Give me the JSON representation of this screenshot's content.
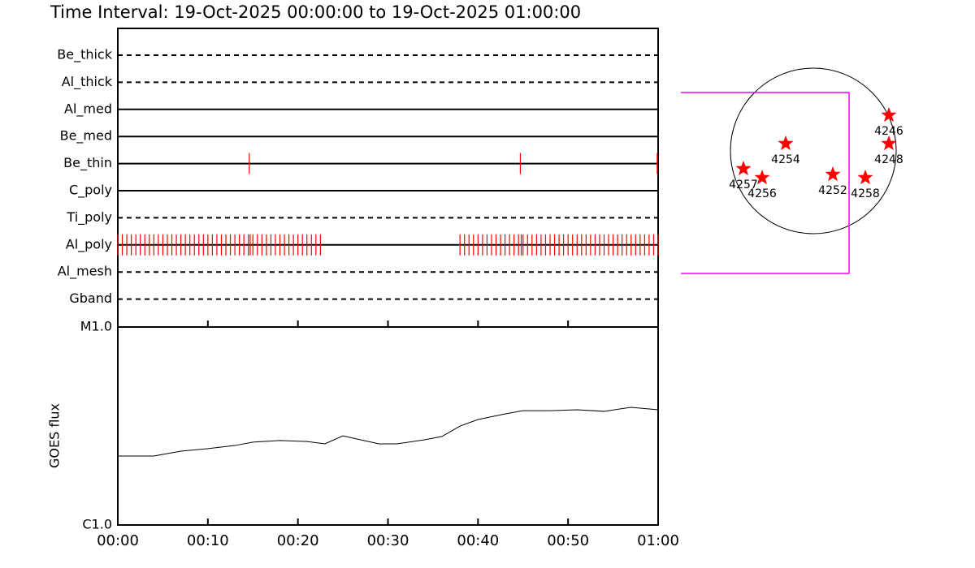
{
  "title": "Time Interval: 19-Oct-2025 00:00:00 to 19-Oct-2025 01:00:00",
  "chart_data": [
    {
      "type": "timeline",
      "xlim": [
        0,
        60
      ],
      "xticks": [
        {
          "value": 0,
          "label": "00:00"
        },
        {
          "value": 10,
          "label": "00:10"
        },
        {
          "value": 20,
          "label": "00:20"
        },
        {
          "value": 30,
          "label": "00:30"
        },
        {
          "value": 40,
          "label": "00:40"
        },
        {
          "value": 50,
          "label": "00:50"
        },
        {
          "value": 60,
          "label": "01:00"
        }
      ],
      "obs_color": "#ff0000",
      "filters": [
        {
          "name": "Be_thick",
          "style": "dashed",
          "observations": []
        },
        {
          "name": "Al_thick",
          "style": "dashed",
          "observations": []
        },
        {
          "name": "Al_med",
          "style": "solid",
          "observations": []
        },
        {
          "name": "Be_med",
          "style": "solid",
          "observations": []
        },
        {
          "name": "Be_thin",
          "style": "solid",
          "observations": [
            14.6,
            44.7,
            59.9
          ]
        },
        {
          "name": "C_poly",
          "style": "solid",
          "observations": []
        },
        {
          "name": "Ti_poly",
          "style": "dashed",
          "observations": []
        },
        {
          "name": "Al_poly",
          "style": "solid",
          "observations": [
            0,
            0.5,
            1,
            1.5,
            2,
            2.5,
            3,
            3.5,
            4,
            4.5,
            5,
            5.5,
            6,
            6.5,
            7,
            7.5,
            8,
            8.5,
            9,
            9.5,
            10,
            10.5,
            11,
            11.5,
            12,
            12.5,
            13,
            13.5,
            14,
            14.5,
            14.7,
            15,
            15.5,
            16,
            16.5,
            17,
            17.5,
            18,
            18.5,
            19,
            19.5,
            20,
            20.5,
            21,
            21.5,
            22,
            22.5,
            38,
            38.5,
            39,
            39.5,
            40,
            40.5,
            41,
            41.5,
            42,
            42.5,
            43,
            43.5,
            44,
            44.5,
            44.8,
            45,
            45.5,
            46,
            46.5,
            47,
            47.5,
            48,
            48.5,
            49,
            49.5,
            50,
            50.5,
            51,
            51.5,
            52,
            52.5,
            53,
            53.5,
            54,
            54.5,
            55,
            55.5,
            56,
            56.5,
            57,
            57.5,
            58,
            58.5,
            59,
            59.5,
            60
          ]
        },
        {
          "name": "Al_mesh",
          "style": "dashed",
          "observations": []
        },
        {
          "name": "Gband",
          "style": "dashed",
          "observations": []
        }
      ]
    },
    {
      "type": "line",
      "ylabel": "GOES flux",
      "log_scale": true,
      "xlim": [
        0,
        60
      ],
      "xticks": [
        {
          "value": 0,
          "label": "00:00"
        },
        {
          "value": 10,
          "label": "00:10"
        },
        {
          "value": 20,
          "label": "00:20"
        },
        {
          "value": 30,
          "label": "00:30"
        },
        {
          "value": 40,
          "label": "00:40"
        },
        {
          "value": 50,
          "label": "00:50"
        },
        {
          "value": 60,
          "label": "01:00"
        }
      ],
      "ylim": [
        1e-06,
        1e-05
      ],
      "yticks": [
        {
          "value": 1e-06,
          "label": "C1.0"
        },
        {
          "value": 1e-05,
          "label": "M1.0"
        }
      ],
      "color": "#000000",
      "x": [
        0,
        4,
        7,
        10,
        13,
        15,
        18,
        21,
        23,
        25,
        27,
        29,
        31,
        34,
        36,
        38,
        40,
        43,
        45,
        48,
        51,
        54,
        57,
        60
      ],
      "values": [
        2.23e-06,
        2.23e-06,
        2.36e-06,
        2.43e-06,
        2.52e-06,
        2.62e-06,
        2.67e-06,
        2.64e-06,
        2.57e-06,
        2.82e-06,
        2.69e-06,
        2.57e-06,
        2.57e-06,
        2.69e-06,
        2.8e-06,
        3.16e-06,
        3.41e-06,
        3.64e-06,
        3.78e-06,
        3.78e-06,
        3.82e-06,
        3.75e-06,
        3.93e-06,
        3.82e-06
      ]
    }
  ],
  "solar_disk": {
    "regions": [
      "4246",
      "4248",
      "4254",
      "4257",
      "4256",
      "4252",
      "4258"
    ]
  }
}
